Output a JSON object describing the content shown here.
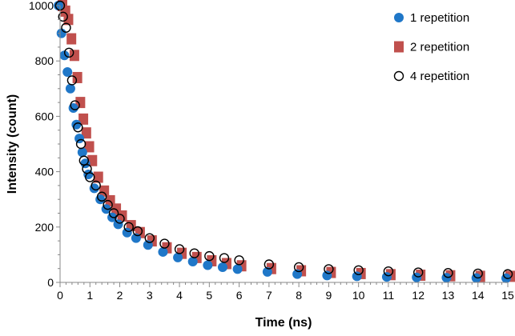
{
  "chart_data": {
    "type": "scatter",
    "title": "",
    "xlabel": "Time (ns)",
    "ylabel": "Intensity (count)",
    "xlim": [
      0,
      15
    ],
    "ylim": [
      0,
      1000
    ],
    "xticks": [
      0,
      1,
      2,
      3,
      4,
      5,
      6,
      7,
      8,
      9,
      10,
      11,
      12,
      13,
      14,
      15
    ],
    "yticks": [
      0,
      200,
      400,
      600,
      800,
      1000
    ],
    "grid": false,
    "legend_position": "top-right",
    "colors": {
      "s1": "#1f77c8",
      "s2": "#c0504d",
      "s4": "#000000"
    },
    "x": [
      0,
      0.1,
      0.2,
      0.3,
      0.4,
      0.5,
      0.6,
      0.7,
      0.8,
      0.9,
      1.0,
      1.2,
      1.4,
      1.6,
      1.8,
      2.0,
      2.3,
      2.6,
      3.0,
      3.5,
      4,
      4.5,
      5,
      5.5,
      6,
      7,
      8,
      9,
      10,
      11,
      12,
      13,
      14,
      15
    ],
    "series": [
      {
        "name": "2 repetition",
        "marker": "square",
        "values": [
          1000,
          980,
          950,
          880,
          820,
          740,
          650,
          590,
          540,
          490,
          440,
          380,
          330,
          295,
          265,
          240,
          205,
          180,
          150,
          125,
          105,
          90,
          78,
          68,
          60,
          50,
          42,
          36,
          32,
          28,
          26,
          24,
          22,
          22
        ]
      },
      {
        "name": "1 repetition",
        "marker": "filled-circle",
        "values": [
          1000,
          900,
          820,
          760,
          700,
          630,
          570,
          520,
          470,
          430,
          390,
          340,
          300,
          265,
          235,
          210,
          180,
          160,
          135,
          110,
          90,
          75,
          62,
          55,
          48,
          38,
          30,
          25,
          22,
          20,
          18,
          17,
          16,
          15
        ]
      },
      {
        "name": "4 repetition",
        "marker": "open-circle",
        "values": [
          1000,
          960,
          920,
          830,
          730,
          640,
          560,
          500,
          440,
          410,
          380,
          350,
          310,
          280,
          250,
          230,
          200,
          185,
          160,
          140,
          120,
          105,
          95,
          88,
          80,
          65,
          55,
          48,
          44,
          40,
          36,
          34,
          32,
          30
        ]
      }
    ],
    "legend_order": [
      1,
      0,
      2
    ]
  }
}
